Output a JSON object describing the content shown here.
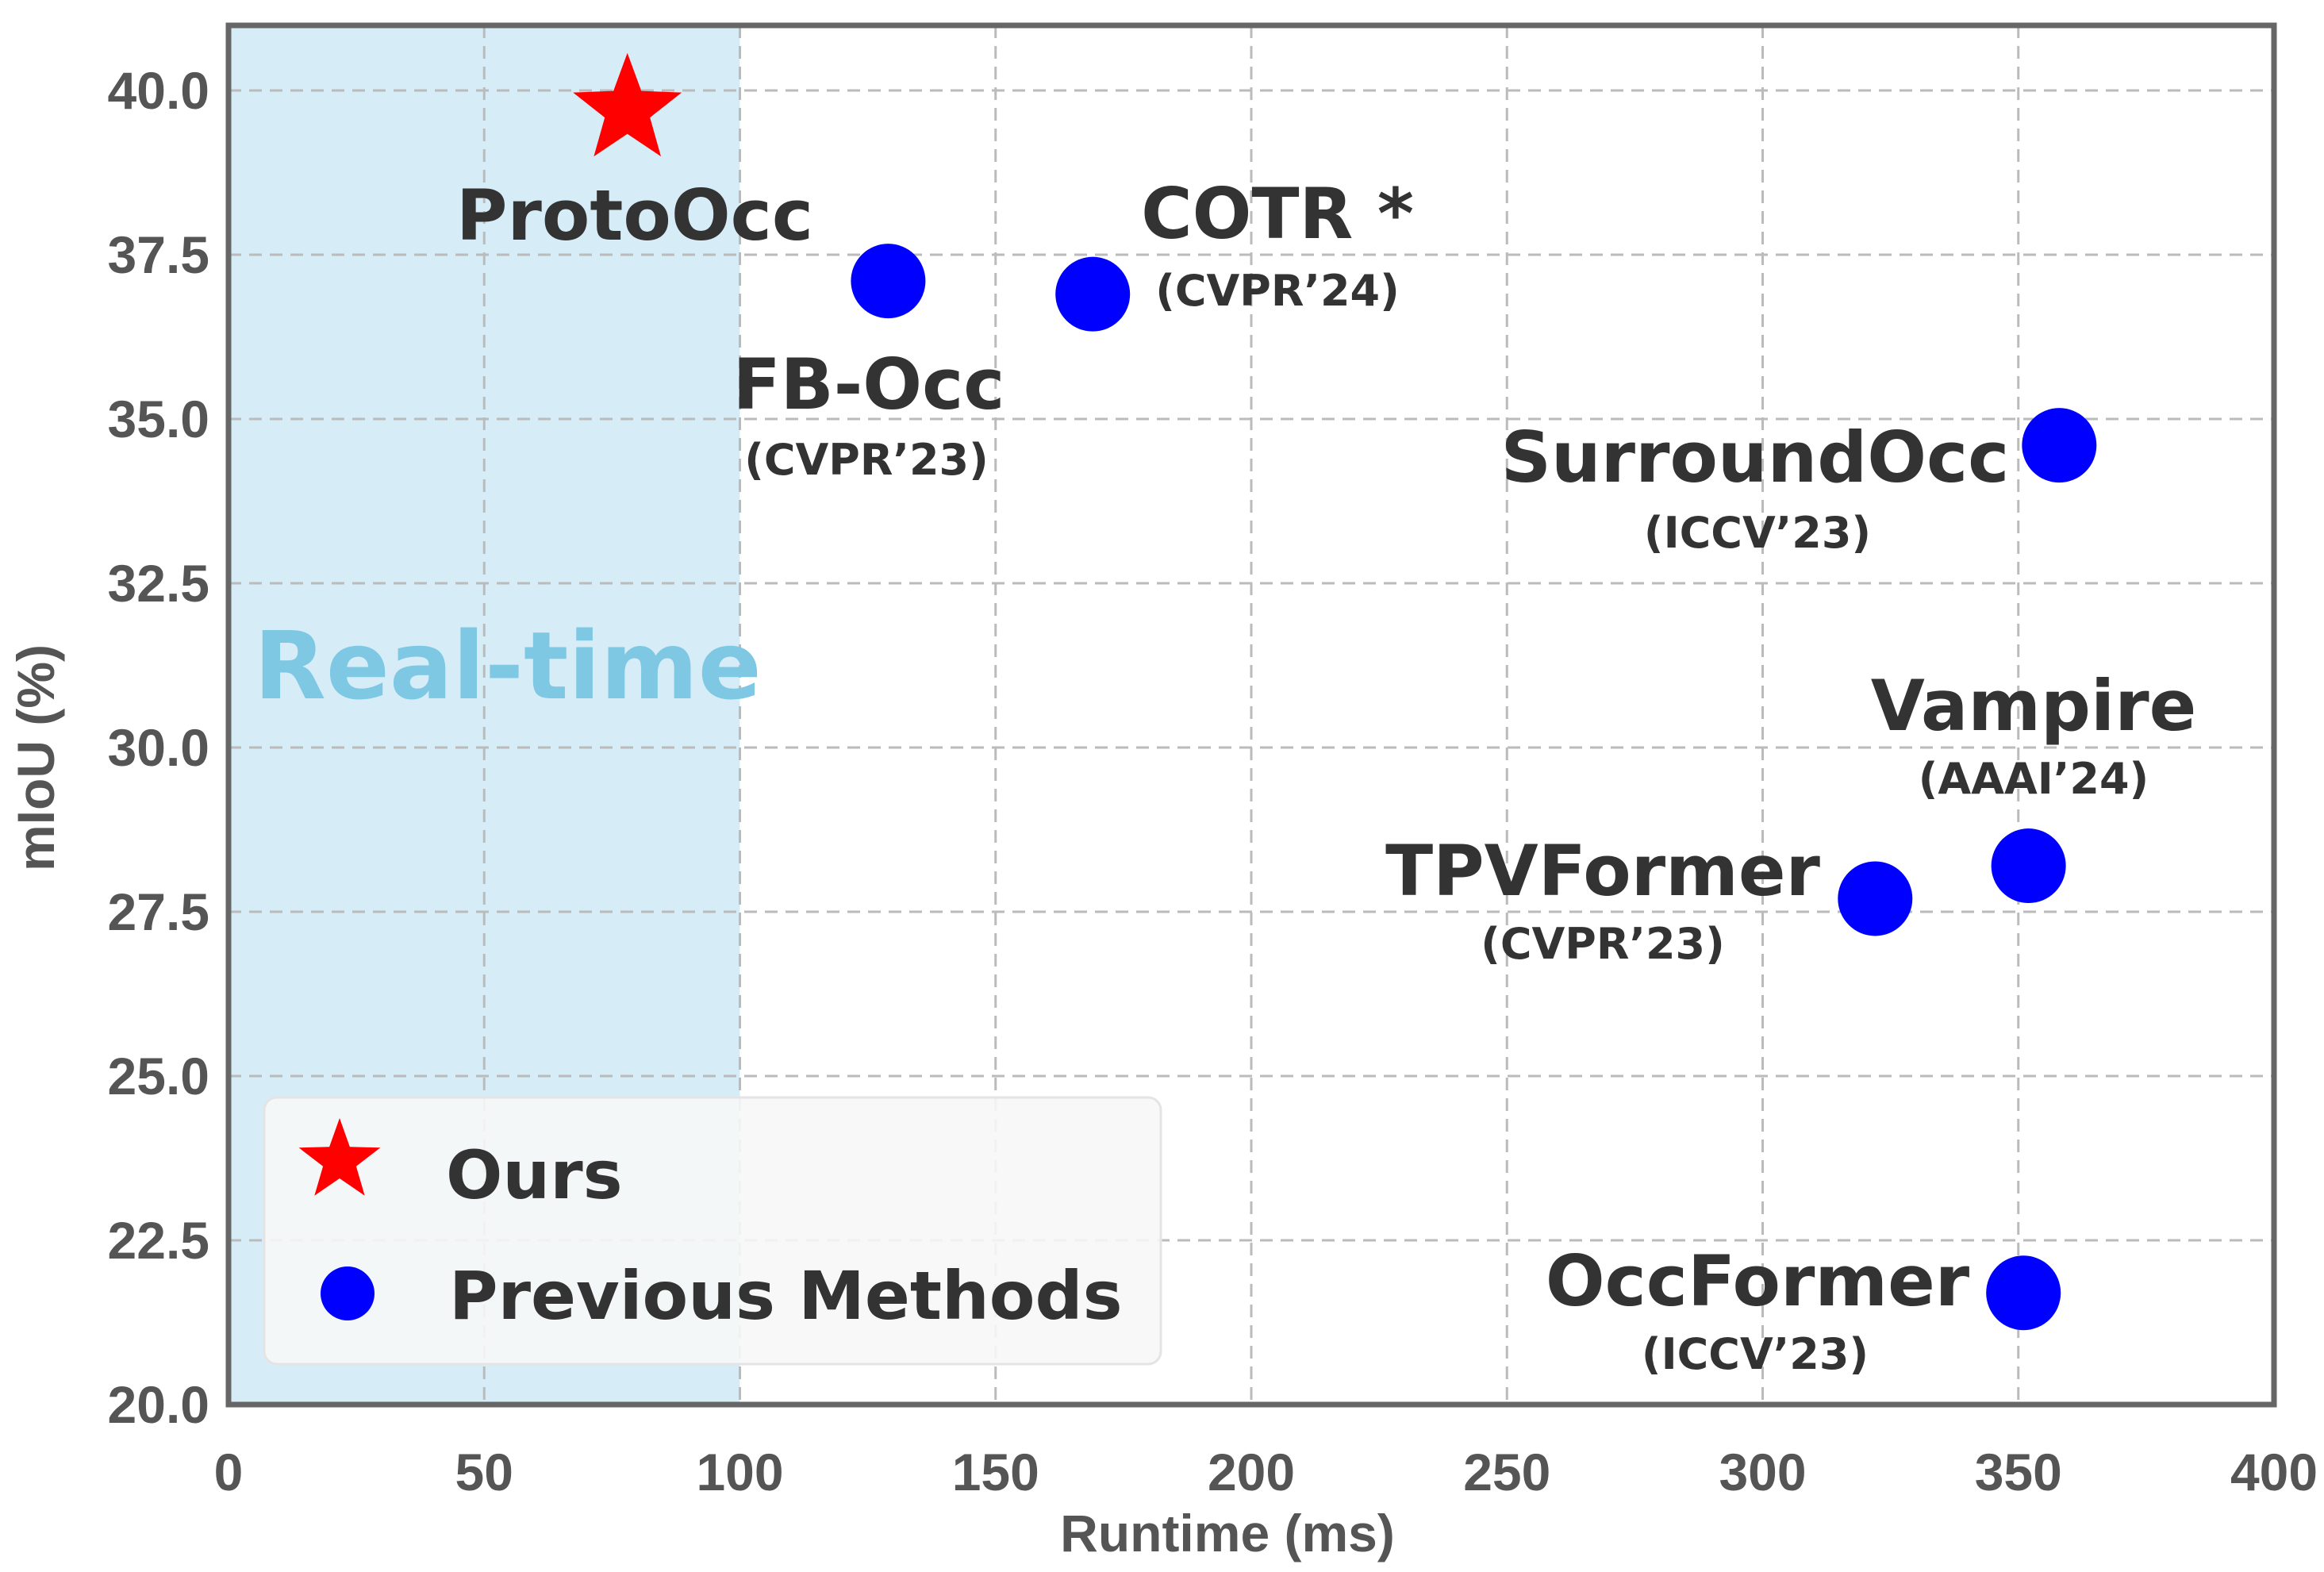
{
  "chart_data": {
    "type": "scatter",
    "xlabel": "Runtime (ms)",
    "ylabel": "mIoU (%)",
    "xlim": [
      0,
      400
    ],
    "ylim": [
      20,
      40.5
    ],
    "xticks": [
      "0",
      "50",
      "100",
      "150",
      "200",
      "250",
      "300",
      "350",
      "400"
    ],
    "yticks": [
      "20.0",
      "22.5",
      "25.0",
      "27.5",
      "30.0",
      "32.5",
      "35.0",
      "37.5",
      "40.0"
    ],
    "grid": true,
    "legend_position": "bottom-left",
    "region": {
      "label": "Real-time",
      "x_range": [
        0,
        100
      ],
      "color": "#7ec8e3",
      "fill": "#d6edf8"
    },
    "series": [
      {
        "name": "Ours",
        "marker": "star",
        "color": "#ff0000",
        "points": [
          {
            "label": "ProtoOcc",
            "venue": "",
            "x": 78,
            "y": 39.7
          }
        ]
      },
      {
        "name": "Previous Methods",
        "marker": "circle",
        "color": "#0000ff",
        "points": [
          {
            "label": "FB-Occ",
            "venue": "(CVPR’23)",
            "x": 129,
            "y": 37.1
          },
          {
            "label": "COTR *",
            "venue": "(CVPR’24)",
            "x": 169,
            "y": 36.9
          },
          {
            "label": "SurroundOcc",
            "venue": "(ICCV’23)",
            "x": 358,
            "y": 34.6
          },
          {
            "label": "Vampire",
            "venue": "(AAAI’24)",
            "x": 352,
            "y": 28.2
          },
          {
            "label": "TPVFormer",
            "venue": "(CVPR’23)",
            "x": 322,
            "y": 27.7
          },
          {
            "label": "OccFormer",
            "venue": "(ICCV’23)",
            "x": 351,
            "y": 21.7
          }
        ]
      }
    ]
  }
}
